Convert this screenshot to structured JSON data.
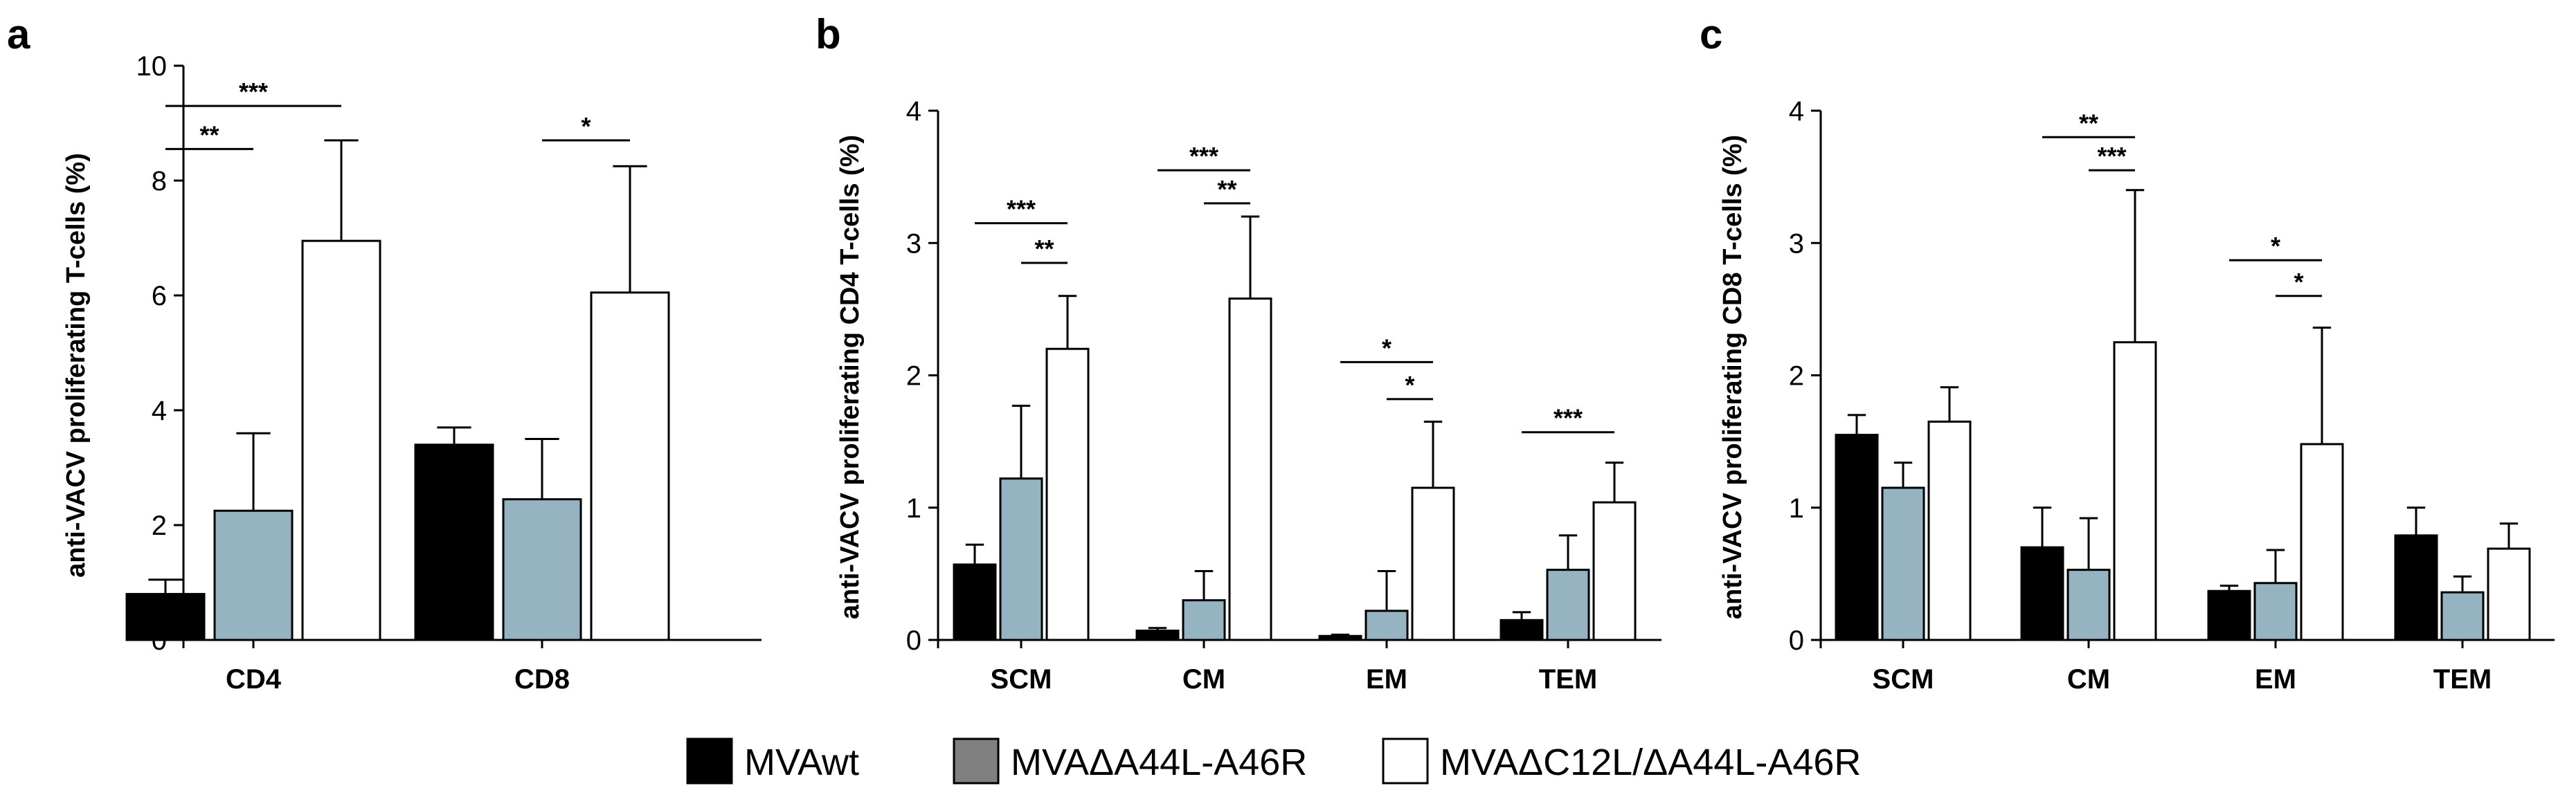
{
  "legend": [
    {
      "name": "MVAwt",
      "color": "#000000"
    },
    {
      "name": "MVAΔA44L-A46R",
      "color": "#808080"
    },
    {
      "name": "MVAΔC12L/ΔA44L-A46R",
      "color": "#ffffff"
    }
  ],
  "chart_data": [
    {
      "panel": "a",
      "type": "bar",
      "ylabel": "anti-VACV proliferating T-cells (%)",
      "ylim": [
        0,
        10
      ],
      "yticks": [
        0,
        2,
        4,
        6,
        8,
        10
      ],
      "categories": [
        "CD4",
        "CD8"
      ],
      "series": [
        {
          "name": "MVAwt",
          "color": "#000000",
          "values": [
            0.8,
            3.4
          ],
          "errors": [
            0.25,
            0.3
          ]
        },
        {
          "name": "MVAΔA44L-A46R",
          "color": "#96b3c2",
          "values": [
            2.25,
            2.45
          ],
          "errors": [
            1.35,
            1.05
          ]
        },
        {
          "name": "MVAΔC12L/ΔA44L-A46R",
          "color": "#ffffff",
          "values": [
            6.95,
            6.05
          ],
          "errors": [
            1.75,
            2.2
          ]
        }
      ],
      "significance": [
        {
          "category": "CD4",
          "from": 0,
          "to": 1,
          "label": "**",
          "y": 8.55
        },
        {
          "category": "CD4",
          "from": 0,
          "to": 2,
          "label": "***",
          "y": 9.3
        },
        {
          "category": "CD8",
          "from": 1,
          "to": 2,
          "label": "*",
          "y": 8.7
        }
      ]
    },
    {
      "panel": "b",
      "type": "bar",
      "ylabel": "anti-VACV proliferating CD4 T-cells (%)",
      "ylim": [
        0,
        4
      ],
      "yticks": [
        0,
        1,
        2,
        3,
        4
      ],
      "categories": [
        "SCM",
        "CM",
        "EM",
        "TEM"
      ],
      "series": [
        {
          "name": "MVAwt",
          "color": "#000000",
          "values": [
            0.57,
            0.07,
            0.03,
            0.15
          ],
          "errors": [
            0.15,
            0.02,
            0.01,
            0.06
          ]
        },
        {
          "name": "MVAΔA44L-A46R",
          "color": "#96b3c2",
          "values": [
            1.22,
            0.3,
            0.22,
            0.53
          ],
          "errors": [
            0.55,
            0.22,
            0.3,
            0.26
          ]
        },
        {
          "name": "MVAΔC12L/ΔA44L-A46R",
          "color": "#ffffff",
          "values": [
            2.2,
            2.58,
            1.15,
            1.04
          ],
          "errors": [
            0.4,
            0.62,
            0.5,
            0.3
          ]
        }
      ],
      "significance": [
        {
          "category": "SCM",
          "from": 0,
          "to": 2,
          "label": "***",
          "y": 3.15
        },
        {
          "category": "SCM",
          "from": 1,
          "to": 2,
          "label": "**",
          "y": 2.85
        },
        {
          "category": "CM",
          "from": 0,
          "to": 2,
          "label": "***",
          "y": 3.55
        },
        {
          "category": "CM",
          "from": 1,
          "to": 2,
          "label": "**",
          "y": 3.3
        },
        {
          "category": "EM",
          "from": 0,
          "to": 2,
          "label": "*",
          "y": 2.1
        },
        {
          "category": "EM",
          "from": 1,
          "to": 2,
          "label": "*",
          "y": 1.82
        },
        {
          "category": "TEM",
          "from": 0,
          "to": 2,
          "label": "***",
          "y": 1.57
        }
      ]
    },
    {
      "panel": "c",
      "type": "bar",
      "ylabel": "anti-VACV proliferating CD8 T-cells (%)",
      "ylim": [
        0,
        4
      ],
      "yticks": [
        0,
        1,
        2,
        3,
        4
      ],
      "categories": [
        "SCM",
        "CM",
        "EM",
        "TEM"
      ],
      "series": [
        {
          "name": "MVAwt",
          "color": "#000000",
          "values": [
            1.55,
            0.7,
            0.37,
            0.79
          ],
          "errors": [
            0.15,
            0.3,
            0.04,
            0.21
          ]
        },
        {
          "name": "MVAΔA44L-A46R",
          "color": "#96b3c2",
          "values": [
            1.15,
            0.53,
            0.43,
            0.36
          ],
          "errors": [
            0.19,
            0.39,
            0.25,
            0.12
          ]
        },
        {
          "name": "MVAΔC12L/ΔA44L-A46R",
          "color": "#ffffff",
          "values": [
            1.65,
            2.25,
            1.48,
            0.69
          ],
          "errors": [
            0.26,
            1.15,
            0.88,
            0.19
          ]
        }
      ],
      "significance": [
        {
          "category": "CM",
          "from": 0,
          "to": 2,
          "label": "**",
          "y": 3.8
        },
        {
          "category": "CM",
          "from": 1,
          "to": 2,
          "label": "***",
          "y": 3.55
        },
        {
          "category": "EM",
          "from": 0,
          "to": 2,
          "label": "*",
          "y": 2.87
        },
        {
          "category": "EM",
          "from": 1,
          "to": 2,
          "label": "*",
          "y": 2.6
        }
      ]
    }
  ]
}
